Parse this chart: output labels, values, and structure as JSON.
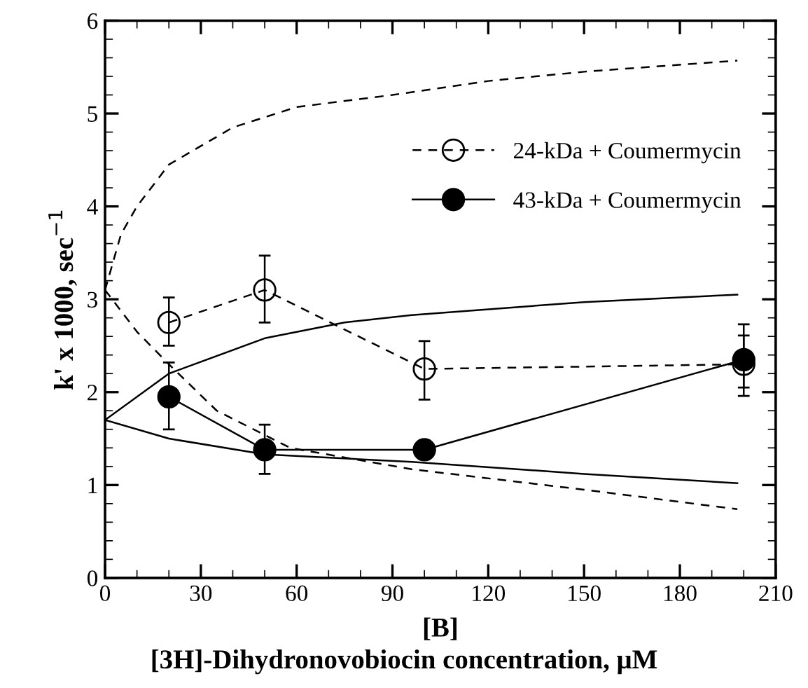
{
  "chart_data": {
    "type": "line",
    "xlabel": "[B]",
    "ylabel": "k' x 1000, sec$^{−1}$",
    "annotations": [
      "[3H]-Dihydronovobiocin concentration, μM"
    ],
    "xlim": [
      0,
      210
    ],
    "xticks": [
      0,
      30,
      60,
      90,
      120,
      150,
      180,
      210
    ],
    "ylim": [
      0,
      6
    ],
    "yticks": [
      0,
      1,
      2,
      3,
      4,
      5,
      6
    ],
    "grid": false,
    "legend": "top right",
    "series": [
      {
        "name": "24-kDa + Coumermycin",
        "color": "#000000",
        "x": [
          20,
          50,
          100,
          200
        ],
        "values": [
          2.75,
          3.1,
          2.25,
          2.3
        ],
        "errors": [
          [
            2.5,
            3.02
          ],
          [
            2.75,
            3.47
          ],
          [
            1.92,
            2.55
          ],
          [
            2.05,
            2.61
          ]
        ],
        "marker": "circle",
        "line_style": "dashed"
      },
      {
        "name": "43-kDa + Coumermycin",
        "color": "#000000",
        "x": [
          20,
          50,
          100,
          200
        ],
        "values": [
          1.95,
          1.38,
          1.38,
          2.35
        ],
        "errors": [
          [
            1.6,
            2.32
          ],
          [
            1.12,
            1.65
          ],
          [
            1.28,
            1.48
          ],
          [
            1.96,
            2.73
          ]
        ],
        "marker": "circle",
        "line_style": "solid"
      },
      {
        "color": "#000000",
        "x": [
          0,
          5,
          10,
          20,
          40,
          60,
          90,
          120,
          150,
          198
        ],
        "values": [
          3.1,
          3.7,
          4.0,
          4.45,
          4.85,
          5.07,
          5.2,
          5.35,
          5.45,
          5.57
        ],
        "marker": "none",
        "line_style": "dashed"
      },
      {
        "color": "#000000",
        "x": [
          0,
          10,
          20,
          35,
          58,
          96,
          150,
          198
        ],
        "values": [
          3.1,
          2.65,
          2.3,
          1.8,
          1.4,
          1.17,
          0.95,
          0.74
        ],
        "marker": "none",
        "line_style": "dashed"
      },
      {
        "color": "#000000",
        "x": [
          0,
          20,
          50,
          75,
          96,
          150,
          198
        ],
        "values": [
          1.7,
          2.2,
          2.58,
          2.75,
          2.83,
          2.97,
          3.05
        ],
        "marker": "none",
        "line_style": "solid"
      },
      {
        "color": "#000000",
        "x": [
          0,
          20,
          50,
          96,
          150,
          198
        ],
        "values": [
          1.7,
          1.5,
          1.33,
          1.25,
          1.12,
          1.02
        ],
        "marker": "none",
        "line_style": "solid"
      }
    ]
  }
}
